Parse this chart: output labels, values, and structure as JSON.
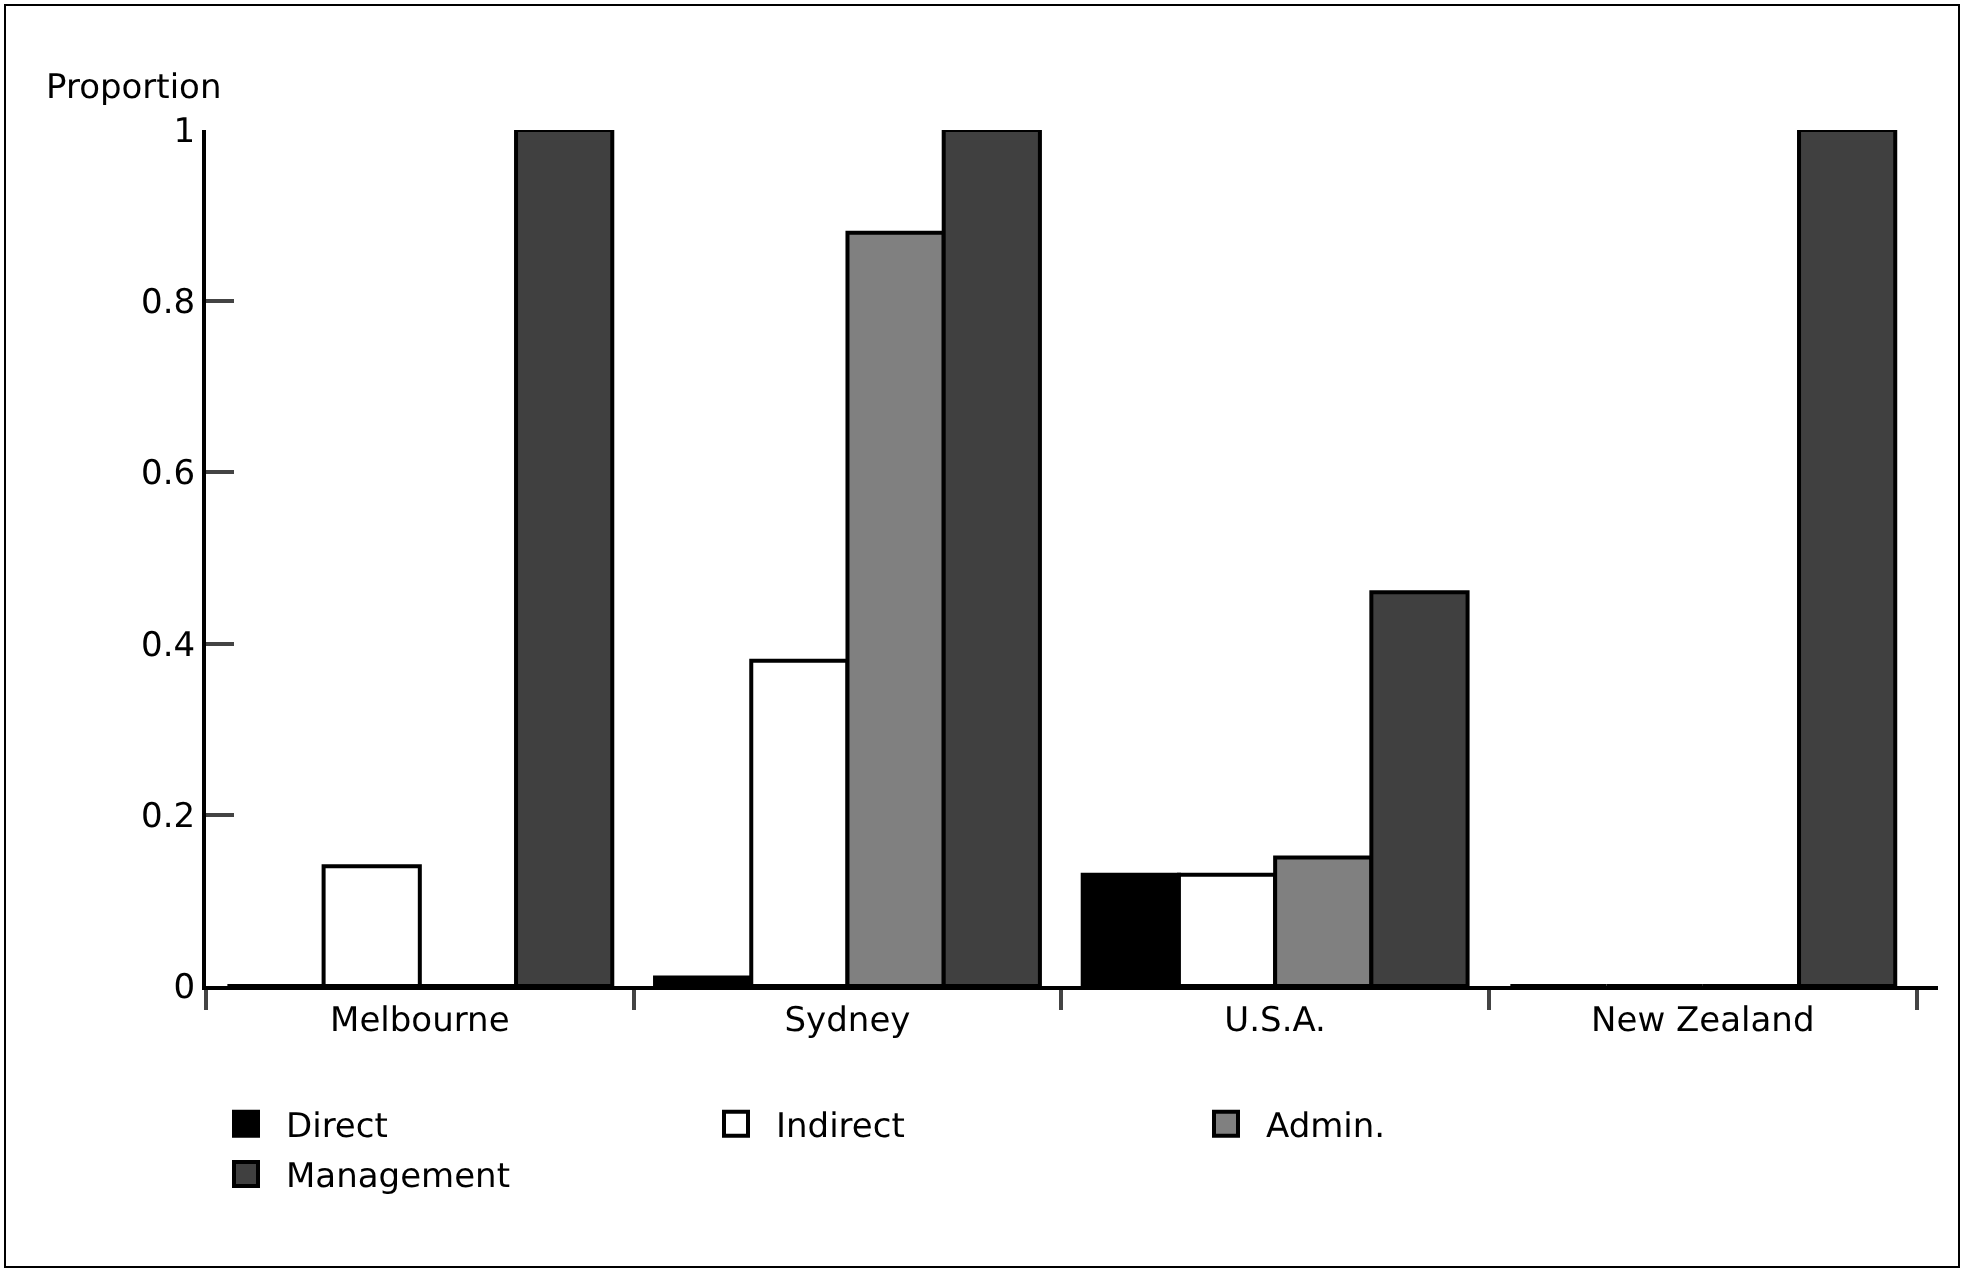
{
  "chart_data": {
    "type": "bar",
    "ylabel": "Proportion",
    "categories": [
      "Melbourne",
      "Sydney",
      "U.S.A.",
      "New Zealand"
    ],
    "series": [
      {
        "name": "Direct",
        "color": "#000000",
        "values": [
          0,
          0.01,
          0.13,
          0
        ]
      },
      {
        "name": "Indirect",
        "color": "#ffffff",
        "values": [
          0.14,
          0.38,
          0.13,
          0
        ]
      },
      {
        "name": "Admin.",
        "color": "#808080",
        "values": [
          0,
          0.88,
          0.15,
          0
        ]
      },
      {
        "name": "Management",
        "color": "#404040",
        "values": [
          1,
          1,
          0.46,
          1
        ]
      }
    ],
    "ylim": [
      0,
      1
    ],
    "yticks": [
      0,
      0.2,
      0.4,
      0.6,
      0.8,
      1
    ],
    "grid": false,
    "legend": "bottom"
  }
}
